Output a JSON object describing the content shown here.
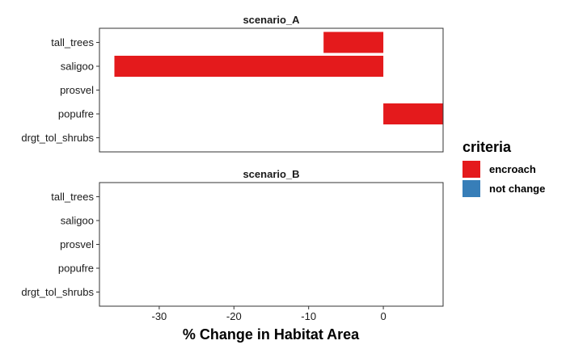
{
  "chart_data": {
    "type": "bar",
    "orientation": "horizontal",
    "xlabel": "% Change in Habitat Area",
    "xlim": [
      -38,
      8
    ],
    "xticks": [
      -30,
      -20,
      -10,
      0
    ],
    "legend": {
      "title": "criteria",
      "placement": "right",
      "entries": [
        {
          "label": "encroach",
          "color": "#E41A1C"
        },
        {
          "label": "not change",
          "color": "#377EB8"
        }
      ]
    },
    "panels": [
      {
        "title": "scenario_A",
        "categories": [
          "tall_trees",
          "saligoo",
          "prosvel",
          "popufre",
          "drgt_tol_shrubs"
        ],
        "values": [
          -8,
          -36,
          0,
          8,
          0
        ],
        "criteria": [
          "encroach",
          "encroach",
          "encroach",
          "encroach",
          "encroach"
        ]
      },
      {
        "title": "scenario_B",
        "categories": [
          "tall_trees",
          "saligoo",
          "prosvel",
          "popufre",
          "drgt_tol_shrubs"
        ],
        "values": [
          0,
          0,
          0,
          0,
          0
        ],
        "criteria": [
          "encroach",
          "encroach",
          "encroach",
          "encroach",
          "encroach"
        ]
      }
    ]
  }
}
